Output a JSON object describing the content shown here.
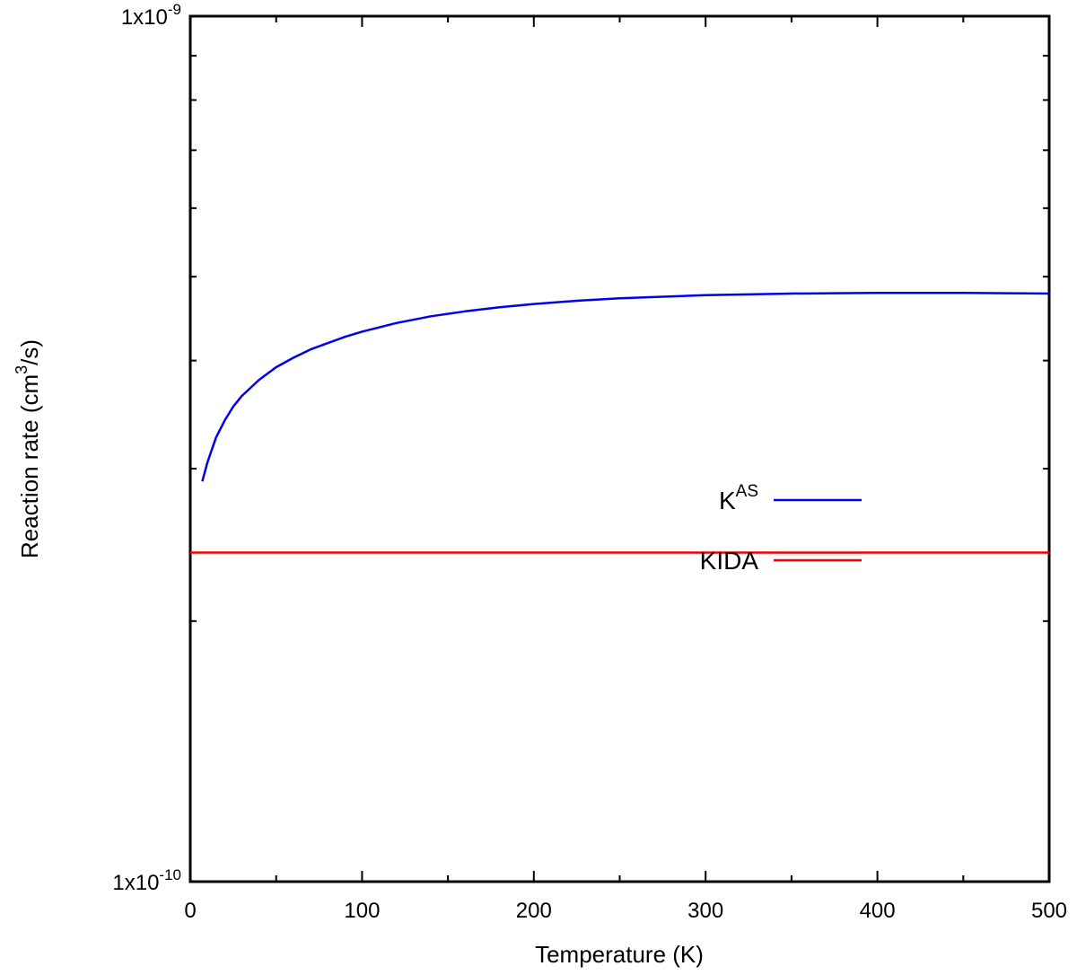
{
  "chart_data": {
    "type": "line",
    "xlabel": "Temperature (K)",
    "ylabel_main": "Reaction rate (cm",
    "ylabel_sup": "3",
    "ylabel_end": "/s)",
    "xlim": [
      0,
      500
    ],
    "ylim": [
      1e-10,
      1e-09
    ],
    "yscale": "log",
    "grid": false,
    "legend_position": "center-right",
    "x_ticks": [
      0,
      100,
      200,
      300,
      400,
      500
    ],
    "y_tick_labels": [
      {
        "value": 1e-09,
        "base": "1x10",
        "exp": "-9"
      },
      {
        "value": 1e-10,
        "base": "1x10",
        "exp": "-10"
      }
    ],
    "series": [
      {
        "name_main": "K",
        "name_sup": "AS",
        "color": "#0000ee",
        "x": [
          7,
          10,
          15,
          20,
          25,
          30,
          40,
          50,
          60,
          70,
          80,
          90,
          100,
          120,
          140,
          160,
          180,
          200,
          225,
          250,
          275,
          300,
          325,
          350,
          375,
          400,
          425,
          450,
          475,
          500
        ],
        "y": [
          2.9e-10,
          3.05e-10,
          3.26e-10,
          3.41e-10,
          3.54e-10,
          3.64e-10,
          3.8e-10,
          3.93e-10,
          4.03e-10,
          4.12e-10,
          4.19e-10,
          4.26e-10,
          4.32e-10,
          4.42e-10,
          4.5e-10,
          4.56e-10,
          4.61e-10,
          4.65e-10,
          4.69e-10,
          4.72e-10,
          4.74e-10,
          4.76e-10,
          4.77e-10,
          4.78e-10,
          4.785e-10,
          4.79e-10,
          4.79e-10,
          4.79e-10,
          4.785e-10,
          4.78e-10
        ]
      },
      {
        "name_main": "KIDA",
        "name_sup": "",
        "color": "#ee0000",
        "x": [
          0,
          500
        ],
        "y": [
          2.4e-10,
          2.4e-10
        ]
      }
    ]
  }
}
